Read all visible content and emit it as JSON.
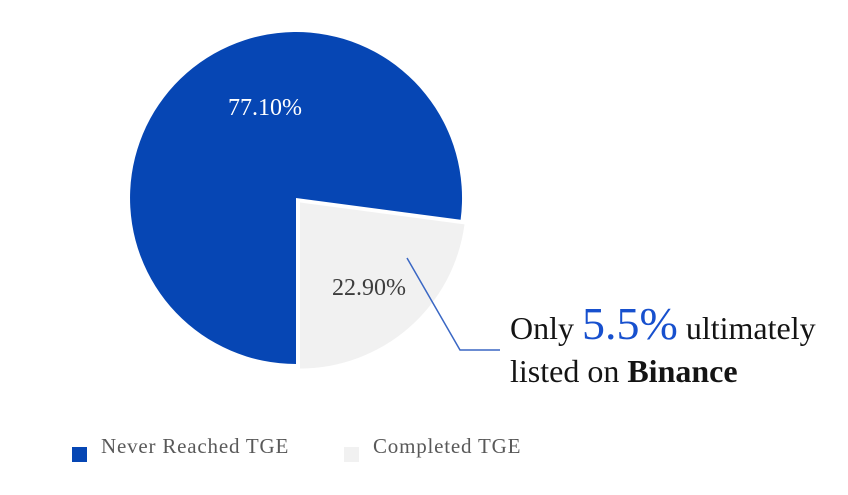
{
  "chart_data": {
    "type": "pie",
    "title": "",
    "categories": [
      "Never Reached TGE",
      "Completed TGE"
    ],
    "values": [
      77.1,
      22.9
    ],
    "slice_labels": [
      "77.10%",
      "22.90%"
    ],
    "colors": [
      "#0646b4",
      "#f1f1f1"
    ],
    "exploded_slice": "Completed TGE",
    "start_angle_deg": 180,
    "legend_position": "bottom-left"
  },
  "legend": {
    "items": [
      {
        "label": "Never Reached TGE",
        "color": "#0646b4"
      },
      {
        "label": "Completed TGE",
        "color": "#f1f1f1"
      }
    ],
    "text_color": "#595959"
  },
  "annotation": {
    "text_before": "Only",
    "highlight": "5.5%",
    "text_after": "ultimately",
    "line2_text": "listed on",
    "line2_emphasis": "Binance",
    "highlight_color": "#1750ce",
    "callout_color": "#3a67c4"
  }
}
